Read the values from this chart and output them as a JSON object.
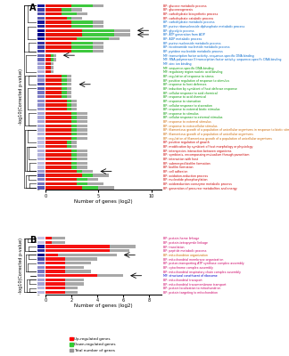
{
  "panel_A": {
    "categories": [
      "BP: glucose metabolic process",
      "BP: gluconeogenesis",
      "BP: carbohydrate biosynthetic process",
      "BP: carbohydrate catabolic process",
      "BP: carbohydrate metabolic process",
      "BP: purine ribonucleoside diphosphate metabolic process",
      "BP: glycolytic process",
      "BP: ATP generation from ADP",
      "BP: ADP metabolic process",
      "BP: purine nucleoside metabolic process",
      "BP: nicotinamide nucleotide metabolic process",
      "BP: pyridine nucleotide metabolic process",
      "MF: transcription factor activity, sequence-specific DNA binding",
      "MF: RNA polymerase II transcription factor activity, sequence-specific DNA binding",
      "MF: zinc ion binding",
      "MF: sequence-specific DNA binding",
      "MF: regulatory region nucleic acid binding",
      "BP: regulation of response to stress",
      "BP: positive regulation of response to stimulus",
      "BP: response to host defenses",
      "BP: induction by symbiont of host defense response",
      "BP: cellular response to acid chemical",
      "BP: response to acid chemical",
      "BP: response to starvation",
      "BP: cellular response to starvation",
      "BP: response to external biotic stimulus",
      "BP: response to stimulus",
      "BP: cellular response to external stimulus",
      "BP: response to external stimulus",
      "BP: response to extracellular stimulus",
      "BP: filamentous growth of a population of unicellular organisms in response to biotic stimulus",
      "BP: filamentous growth of a population of unicellular organisms",
      "BP: regulation of filamentous growth of a population of unicellular organisms",
      "BP: positive regulation of growth",
      "BP: modification by symbiont of host morphology or physiology",
      "BP: interspecies interaction between organisms",
      "BP: symbiosis, encompassing mutualism through parasitism",
      "BP: interaction with host",
      "BP: submerged biofilm formation",
      "BP: biofilm formation",
      "BP: cell adhesion",
      "BP: oxidation-reduction process",
      "BP: nucleotide phosphorylation",
      "BP: oxidoreduction coenzyme metabolic process",
      "BP: generation of precursor metabolites and energy"
    ],
    "up_values": [
      2.5,
      1.5,
      1.5,
      2.0,
      2.5,
      2.5,
      3.5,
      3.5,
      3.0,
      2.5,
      2.5,
      2.5,
      0.5,
      0.5,
      0.5,
      0.5,
      0.5,
      1.5,
      1.5,
      1.5,
      1.5,
      1.5,
      1.5,
      2.0,
      2.0,
      2.0,
      2.5,
      2.5,
      2.5,
      2.5,
      2.5,
      2.5,
      2.5,
      2.0,
      2.0,
      2.5,
      2.5,
      2.5,
      2.5,
      2.5,
      3.0,
      3.5,
      3.0,
      3.0,
      3.5
    ],
    "down_values": [
      4.5,
      2.5,
      3.0,
      2.5,
      4.5,
      4.5,
      6.5,
      6.5,
      6.0,
      4.5,
      4.5,
      4.5,
      0.8,
      0.8,
      0.5,
      0.5,
      0.5,
      2.0,
      2.0,
      2.0,
      2.0,
      2.0,
      2.0,
      2.5,
      2.5,
      2.5,
      3.0,
      3.0,
      3.0,
      3.0,
      3.0,
      3.0,
      3.0,
      2.5,
      2.5,
      3.0,
      3.0,
      3.0,
      3.0,
      3.0,
      3.5,
      4.5,
      4.0,
      4.0,
      5.0
    ],
    "total_values": [
      5.5,
      3.5,
      4.0,
      3.5,
      5.5,
      5.5,
      8.0,
      8.0,
      7.0,
      5.5,
      5.5,
      5.5,
      1.0,
      1.0,
      0.8,
      0.8,
      0.8,
      2.5,
      2.5,
      2.5,
      2.5,
      2.5,
      2.5,
      3.0,
      3.0,
      3.0,
      4.0,
      4.0,
      4.0,
      4.0,
      4.0,
      4.0,
      4.0,
      3.0,
      3.0,
      4.0,
      4.0,
      4.0,
      4.0,
      4.0,
      4.5,
      6.0,
      5.0,
      5.5,
      6.5
    ],
    "heatmap_values": [
      18,
      15,
      14,
      13,
      18,
      17,
      20,
      20,
      19,
      16,
      15,
      15,
      12,
      12,
      8,
      7,
      6,
      10,
      9,
      14,
      13,
      11,
      10,
      9,
      9,
      8,
      7,
      7,
      7,
      7,
      6,
      6,
      6,
      5,
      5,
      6,
      6,
      6,
      5,
      5,
      8,
      12,
      10,
      11,
      13
    ],
    "label_colors": [
      "#cc0000",
      "#cc0000",
      "#cc0000",
      "#cc0000",
      "#cc0000",
      "#cc0000",
      "#cc0000",
      "#cc0000",
      "#cc0000",
      "#cc0000",
      "#cc0000",
      "#cc0000",
      "#cc6600",
      "#cc6600",
      "#cc6600",
      "#cc6600",
      "#cc6600",
      "#009900",
      "#009900",
      "#009900",
      "#009900",
      "#009900",
      "#009900",
      "#009900",
      "#009900",
      "#009900",
      "#009900",
      "#009900",
      "#009900",
      "#009900",
      "#0066cc",
      "#0066cc",
      "#0066cc",
      "#0066cc",
      "#0066cc",
      "#0066cc",
      "#0066cc",
      "#0066cc",
      "#0066cc",
      "#0066cc",
      "#0066cc",
      "#cc0000",
      "#cc0000",
      "#cc0000",
      "#cc0000"
    ],
    "xlim": 11,
    "xticks": [
      0,
      5,
      10
    ],
    "xlabel": "Number of genes (log2)",
    "arrow_indices": [
      6,
      7,
      12,
      19,
      40
    ],
    "panel_label": "A",
    "pv_yticks": [
      0,
      5,
      10,
      15
    ],
    "pv_max": 20
  },
  "panel_B": {
    "categories": [
      "BP: protein-heme linkage",
      "BP: protein-tetrapyrrole linkage",
      "BP: translation",
      "BP: peptide metabolic process",
      "BP: mitochondrion organization",
      "BP: mitochondrial membrane organization",
      "BP: proton-transporting ATP synthase complex assembly",
      "BP: cytochrome complex assembly",
      "BP: mitochondrial respiratory chain complex assembly",
      "MF: structural constituent of ribosome",
      "BP: mitochondrial transport",
      "BP: mitochondrial transmembrane transport",
      "BP: protein localization to mitochondrion",
      "BP: protein targeting to mitochondrion"
    ],
    "up_values": [
      0.5,
      0.5,
      5.0,
      5.0,
      1.0,
      1.5,
      1.5,
      1.5,
      1.5,
      4.0,
      1.5,
      1.5,
      1.5,
      1.5
    ],
    "down_values": [
      0.0,
      0.0,
      0.0,
      0.0,
      0.0,
      0.0,
      0.0,
      0.0,
      0.0,
      0.0,
      0.0,
      0.0,
      0.0,
      0.0
    ],
    "total_values": [
      1.5,
      1.5,
      7.0,
      6.5,
      5.5,
      4.0,
      3.5,
      3.0,
      3.5,
      6.0,
      3.0,
      3.0,
      2.5,
      2.5
    ],
    "heatmap_values": [
      5,
      5,
      20,
      18,
      22,
      16,
      12,
      10,
      12,
      10,
      8,
      8,
      6,
      6
    ],
    "label_colors": [
      "#cc0066",
      "#cc0066",
      "#cc0066",
      "#cc0066",
      "#0000cc",
      "#cc0066",
      "#cc0066",
      "#cc0066",
      "#cc0066",
      "#cc6600",
      "#cc0066",
      "#cc0066",
      "#cc0066",
      "#cc0066"
    ],
    "xlim": 9,
    "xticks": [
      0,
      2,
      4,
      6,
      8
    ],
    "xlabel": "Number of genes (log2)",
    "arrow_indices": [
      4,
      9
    ],
    "panel_label": "B",
    "pv_yticks": [
      0,
      5,
      10,
      15,
      20
    ],
    "pv_max": 22
  },
  "colors": {
    "up": "#ff0000",
    "down": "#33cc33",
    "total": "#999999",
    "heatmap_low": "#ffffff",
    "heatmap_high": "#00008b"
  },
  "legend": {
    "up_label": "Up-regulated genes",
    "down_label": "Down-regulated genes",
    "total_label": "Total number of genes"
  }
}
